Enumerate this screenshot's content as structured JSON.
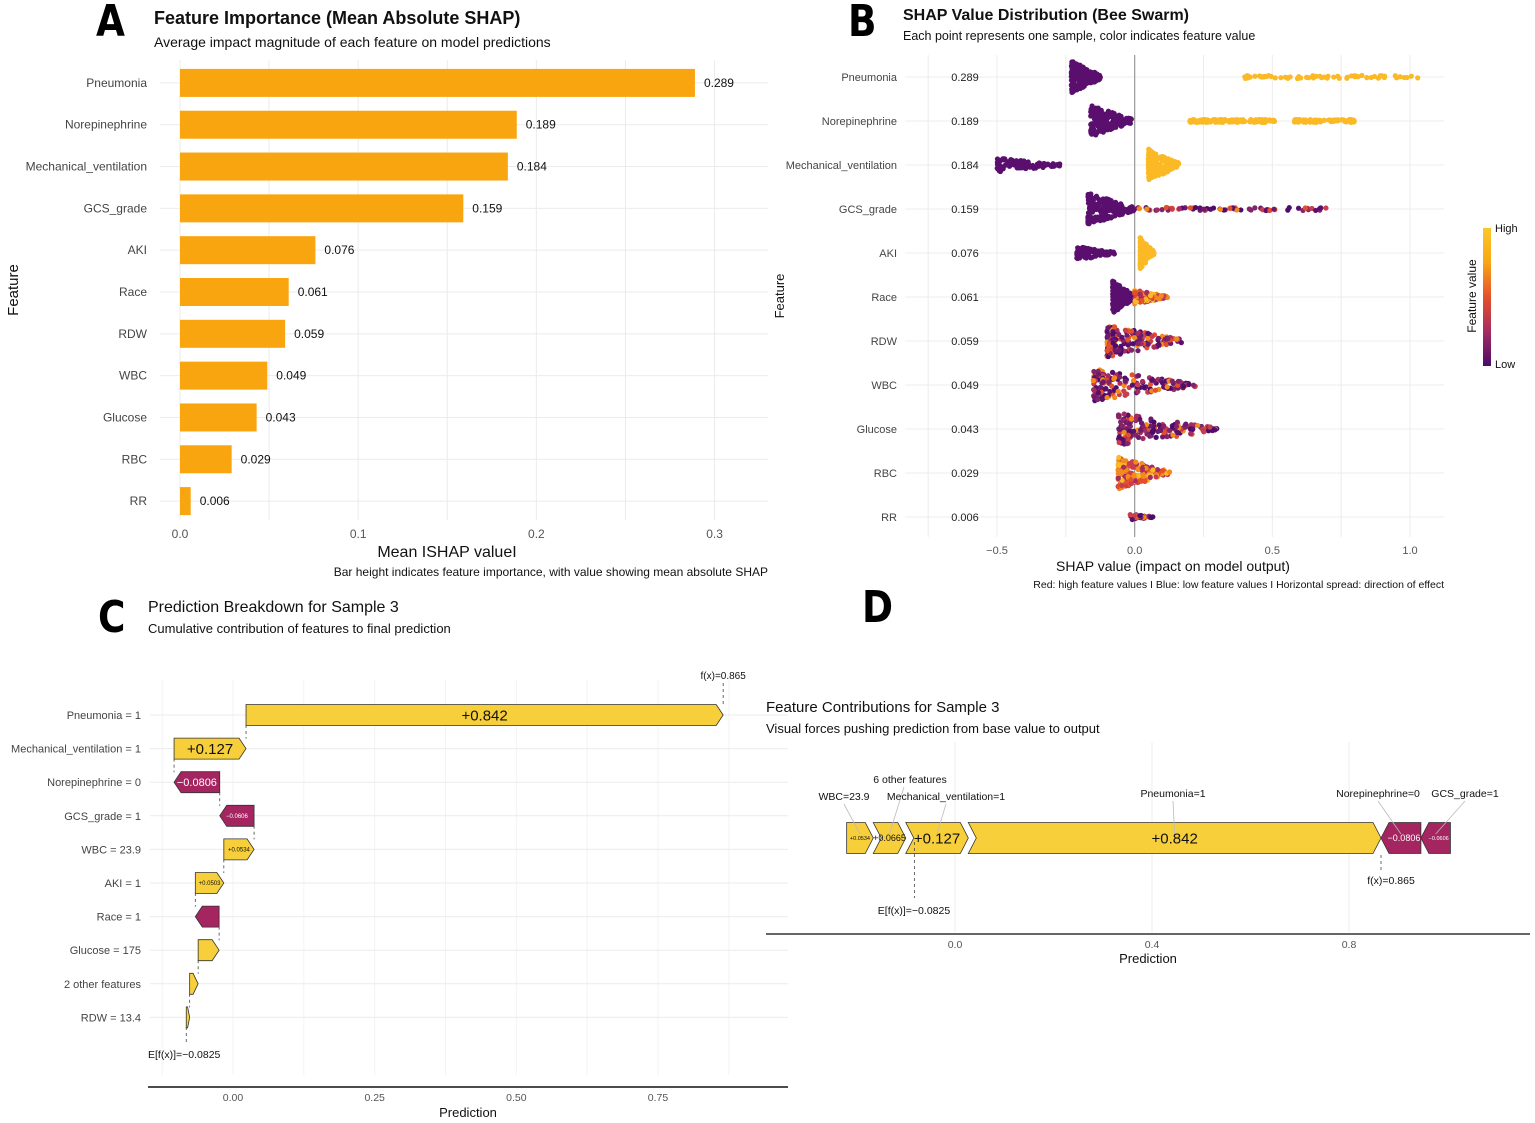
{
  "panels": {
    "A": {
      "letter": "A",
      "title": "Feature Importance (Mean Absolute SHAP)",
      "subtitle": "Average impact magnitude of each feature on model predictions"
    },
    "B": {
      "letter": "B",
      "title": "SHAP Value Distribution (Bee Swarm)",
      "subtitle": "Each point represents one sample, color indicates feature value"
    },
    "C": {
      "letter": "C",
      "title": "Prediction Breakdown for Sample 3",
      "subtitle": "Cumulative contribution of features to final prediction"
    },
    "D": {
      "letter": "D",
      "title": "Feature Contributions for Sample 3",
      "subtitle": "Visual forces pushing prediction from base value to output"
    }
  },
  "chart_data": [
    {
      "id": "A",
      "type": "bar",
      "orientation": "horizontal",
      "title": "Feature Importance (Mean Absolute SHAP)",
      "subtitle": "Average impact magnitude of each feature on model predictions",
      "xlabel": "Mean |SHAP value|",
      "xlabel_display": "Mean ISHAP valueI",
      "ylabel": "Feature",
      "caption": "Bar height indicates feature importance, with value showing mean absolute SHAP",
      "categories": [
        "Pneumonia",
        "Norepinephrine",
        "Mechanical_ventilation",
        "GCS_grade",
        "AKI",
        "Race",
        "RDW",
        "WBC",
        "Glucose",
        "RBC",
        "RR"
      ],
      "values": [
        0.289,
        0.189,
        0.184,
        0.159,
        0.076,
        0.061,
        0.059,
        0.049,
        0.043,
        0.029,
        0.006
      ],
      "value_labels": [
        "0.289",
        "0.189",
        "0.184",
        "0.159",
        "0.076",
        "0.061",
        "0.059",
        "0.049",
        "0.043",
        "0.029",
        "0.006"
      ],
      "xlim": [
        0,
        0.33
      ],
      "xticks": [
        0.0,
        0.1,
        0.2,
        0.3
      ],
      "xtick_labels": [
        "0.0",
        "0.1",
        "0.2",
        "0.3"
      ],
      "bar_color": "#F9A50F",
      "grid": true
    },
    {
      "id": "B",
      "type": "scatter",
      "subtype": "beeswarm",
      "title": "SHAP Value Distribution (Bee Swarm)",
      "subtitle": "Each point represents one sample, color indicates feature value",
      "xlabel": "SHAP value (impact on model output)",
      "ylabel": "Feature",
      "caption": "Red: high feature values I Blue: low feature values I Horizontal spread: direction of effect",
      "categories": [
        "Pneumonia",
        "Norepinephrine",
        "Mechanical_ventilation",
        "GCS_grade",
        "AKI",
        "Race",
        "RDW",
        "WBC",
        "Glucose",
        "RBC",
        "RR"
      ],
      "mean_abs_labels": [
        "0.289",
        "0.189",
        "0.184",
        "0.159",
        "0.076",
        "0.061",
        "0.059",
        "0.049",
        "0.043",
        "0.029",
        "0.006"
      ],
      "xlim": [
        -0.75,
        1.15
      ],
      "xticks": [
        -0.5,
        0.0,
        0.5,
        1.0
      ],
      "xtick_labels": [
        "−0.5",
        "0.0",
        "0.5",
        "1.0"
      ],
      "legend": {
        "title": "Feature value",
        "high": "High",
        "low": "Low",
        "position": "right",
        "colors": [
          "#4B0C6B",
          "#A52C60",
          "#E4502A",
          "#F7A614",
          "#FBC72A"
        ]
      },
      "distributions": [
        {
          "feature": "Pneumonia",
          "clusters": [
            {
              "min": -0.23,
              "max": -0.12,
              "color": "#5A0F6E",
              "density": "high"
            },
            {
              "min": 0.4,
              "max": 1.05,
              "color": "#FBB925",
              "density": "line"
            }
          ]
        },
        {
          "feature": "Norepinephrine",
          "clusters": [
            {
              "min": -0.16,
              "max": -0.01,
              "color": "#5A0F6E",
              "density": "high"
            },
            {
              "min": 0.2,
              "max": 0.33,
              "color": "#FBB925",
              "density": "line"
            },
            {
              "min": 0.34,
              "max": 0.51,
              "color": "#FBB925",
              "density": "line"
            },
            {
              "min": 0.58,
              "max": 0.8,
              "color": "#FBB925",
              "density": "line"
            }
          ]
        },
        {
          "feature": "Mechanical_ventilation",
          "clusters": [
            {
              "min": -0.5,
              "max": -0.27,
              "color": "#5A0F6E",
              "density": "medium"
            },
            {
              "min": 0.05,
              "max": 0.16,
              "color": "#FBB925",
              "density": "high"
            }
          ]
        },
        {
          "feature": "GCS_grade",
          "clusters": [
            {
              "min": -0.17,
              "max": 0.0,
              "color": "#5A0F6E",
              "density": "high"
            },
            {
              "min": 0.0,
              "max": 0.71,
              "color": "mixed",
              "density": "line"
            }
          ]
        },
        {
          "feature": "AKI",
          "clusters": [
            {
              "min": -0.21,
              "max": -0.07,
              "color": "#5A0F6E",
              "density": "medium"
            },
            {
              "min": 0.02,
              "max": 0.07,
              "color": "#FBB925",
              "density": "high"
            }
          ]
        },
        {
          "feature": "Race",
          "clusters": [
            {
              "min": -0.08,
              "max": 0.0,
              "color": "#5A0F6E",
              "density": "high"
            },
            {
              "min": 0.0,
              "max": 0.12,
              "color": "mixed-warm",
              "density": "medium"
            }
          ]
        },
        {
          "feature": "RDW",
          "clusters": [
            {
              "min": -0.1,
              "max": 0.17,
              "color": "mixed",
              "density": "high"
            }
          ]
        },
        {
          "feature": "WBC",
          "clusters": [
            {
              "min": -0.15,
              "max": 0.22,
              "color": "mixed",
              "density": "high"
            }
          ]
        },
        {
          "feature": "Glucose",
          "clusters": [
            {
              "min": -0.06,
              "max": 0.3,
              "color": "mixed",
              "density": "high"
            }
          ]
        },
        {
          "feature": "RBC",
          "clusters": [
            {
              "min": -0.06,
              "max": 0.13,
              "color": "mixed-warm",
              "density": "high"
            }
          ]
        },
        {
          "feature": "RR",
          "clusters": [
            {
              "min": -0.02,
              "max": 0.07,
              "color": "mixed",
              "density": "low"
            }
          ]
        }
      ],
      "grid": true
    },
    {
      "id": "C",
      "type": "bar",
      "subtype": "waterfall",
      "title": "Prediction Breakdown for Sample 3",
      "subtitle": "Cumulative contribution of features to final prediction",
      "xlabel": "Prediction",
      "base_value": -0.0825,
      "base_label": "E[f(x)]=−0.0825",
      "final_value": 0.865,
      "final_label": "f(x)=0.865",
      "xlim": [
        -0.15,
        0.96
      ],
      "xticks": [
        0.0,
        0.25,
        0.5,
        0.75
      ],
      "xtick_labels": [
        "0.00",
        "0.25",
        "0.50",
        "0.75"
      ],
      "rows": [
        {
          "label": "Pneumonia = 1",
          "start": 0.023,
          "end": 0.865,
          "value": 0.842,
          "text": "+0.842"
        },
        {
          "label": "Mechanical_ventilation = 1",
          "start": -0.104,
          "end": 0.023,
          "value": 0.127,
          "text": "+0.127"
        },
        {
          "label": "Norepinephrine = 0",
          "start": -0.0234,
          "end": -0.104,
          "value": -0.0806,
          "text": "−0.0806"
        },
        {
          "label": "GCS_grade = 1",
          "start": 0.0372,
          "end": -0.0234,
          "value": -0.0606,
          "text": "−0.0606"
        },
        {
          "label": "WBC = 23.9",
          "start": -0.0162,
          "end": 0.0372,
          "value": 0.0534,
          "text": "+0.0534"
        },
        {
          "label": "AKI = 1",
          "start": -0.0665,
          "end": -0.0162,
          "value": 0.0503,
          "text": "+0.0503"
        },
        {
          "label": "Race = 1",
          "start": -0.0245,
          "end": -0.0665,
          "value": -0.042,
          "text": ""
        },
        {
          "label": "Glucose = 175",
          "start": -0.0615,
          "end": -0.0245,
          "value": 0.037,
          "text": ""
        },
        {
          "label": "2 other features",
          "start": -0.0765,
          "end": -0.0615,
          "value": 0.015,
          "text": ""
        },
        {
          "label": "RDW = 13.4",
          "start": -0.0825,
          "end": -0.0765,
          "value": 0.006,
          "text": ""
        }
      ],
      "pos_color": "#F7CF3B",
      "neg_color": "#A52560",
      "grid": true
    },
    {
      "id": "D",
      "type": "bar",
      "subtype": "force",
      "title": "Feature Contributions for Sample 3",
      "subtitle": "Visual forces pushing prediction from base value to output",
      "xlabel": "Prediction",
      "base_value": -0.0825,
      "base_label": "E[f(x)]=−0.0825",
      "final_value": 0.865,
      "final_label": "f(x)=0.865",
      "xlim": [
        -0.39,
        1.18
      ],
      "xticks": [
        0.0,
        0.4,
        0.8
      ],
      "xtick_labels": [
        "0.0",
        "0.4",
        "0.8"
      ],
      "segments": [
        {
          "label": "WBC=23.9",
          "start": -0.22,
          "end": -0.166,
          "value": 0.0534,
          "text": "+0.0534",
          "sign": "pos"
        },
        {
          "label": "6 other features",
          "start": -0.166,
          "end": -0.1,
          "value": 0.0665,
          "text": "+0.0665",
          "sign": "pos"
        },
        {
          "label": "Mechanical_ventilation=1",
          "start": -0.1,
          "end": 0.027,
          "value": 0.127,
          "text": "+0.127",
          "sign": "pos"
        },
        {
          "label": "Pneumonia=1",
          "start": 0.027,
          "end": 0.865,
          "value": 0.842,
          "text": "+0.842",
          "sign": "pos"
        },
        {
          "label": "Norepinephrine=0",
          "start": 0.865,
          "end": 0.946,
          "value": -0.0806,
          "text": "−0.0806",
          "sign": "neg"
        },
        {
          "label": "GCS_grade=1",
          "start": 0.946,
          "end": 1.006,
          "value": -0.0606,
          "text": "−0.0606",
          "sign": "neg"
        }
      ],
      "pos_color": "#F7CF3B",
      "neg_color": "#A52560",
      "grid": true
    }
  ]
}
